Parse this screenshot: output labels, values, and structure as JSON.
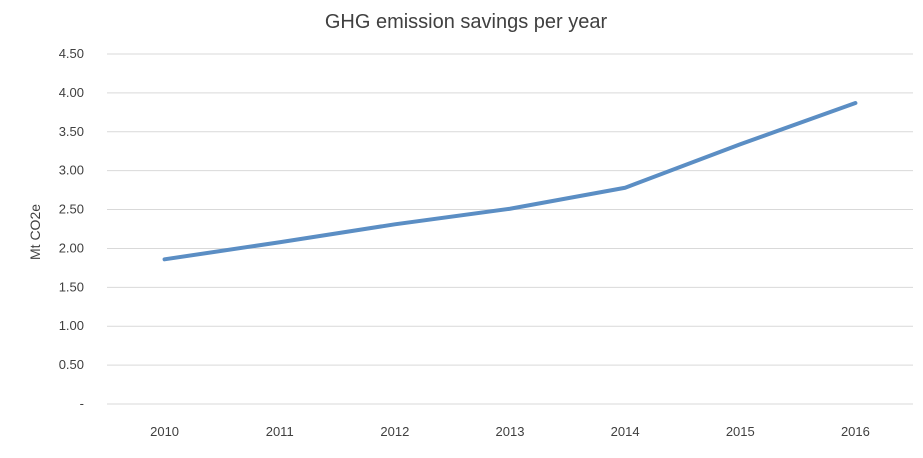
{
  "chart_data": {
    "type": "line",
    "title": "GHG emission savings per year",
    "xlabel": "",
    "ylabel": "Mt CO2e",
    "categories": [
      "2010",
      "2011",
      "2012",
      "2013",
      "2014",
      "2015",
      "2016"
    ],
    "series": [
      {
        "values": [
          1.86,
          2.08,
          2.31,
          2.51,
          2.78,
          3.34,
          3.87
        ],
        "color": "#5b8ec4"
      }
    ],
    "ylim": [
      0,
      4.5
    ],
    "yticks": [
      "-",
      "0.50",
      "1.00",
      "1.50",
      "2.00",
      "2.50",
      "3.00",
      "3.50",
      "4.00",
      "4.50"
    ],
    "grid": true,
    "legend": "none"
  }
}
